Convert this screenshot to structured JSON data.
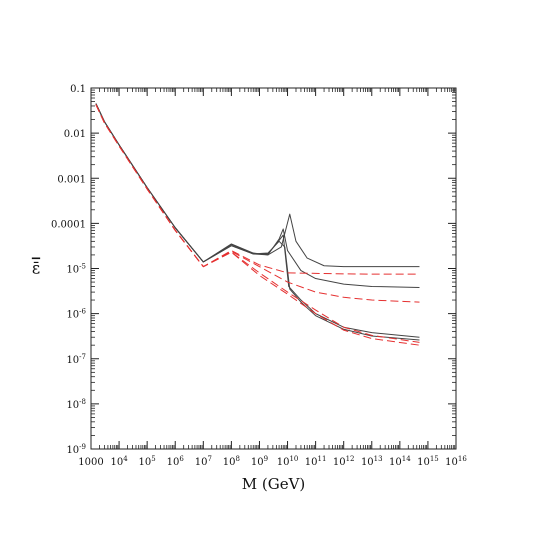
{
  "chart_data": {
    "type": "line",
    "title": "",
    "xlabel": "M (GeV)",
    "ylabel": "ε̄",
    "xscale": "log",
    "yscale": "log",
    "xlim": [
      1000,
      1e+16
    ],
    "ylim": [
      1e-09,
      0.1
    ],
    "grid": false,
    "x_ticks": [
      {
        "value": 1000.0,
        "base": "1000",
        "exp": ""
      },
      {
        "value": 10000.0,
        "base": "10",
        "exp": "4"
      },
      {
        "value": 100000.0,
        "base": "10",
        "exp": "5"
      },
      {
        "value": 1000000.0,
        "base": "10",
        "exp": "6"
      },
      {
        "value": 10000000.0,
        "base": "10",
        "exp": "7"
      },
      {
        "value": 100000000.0,
        "base": "10",
        "exp": "8"
      },
      {
        "value": 1000000000.0,
        "base": "10",
        "exp": "9"
      },
      {
        "value": 10000000000.0,
        "base": "10",
        "exp": "10"
      },
      {
        "value": 100000000000.0,
        "base": "10",
        "exp": "11"
      },
      {
        "value": 1000000000000.0,
        "base": "10",
        "exp": "12"
      },
      {
        "value": 10000000000000.0,
        "base": "10",
        "exp": "13"
      },
      {
        "value": 100000000000000.0,
        "base": "10",
        "exp": "14"
      },
      {
        "value": 1000000000000000.0,
        "base": "10",
        "exp": "15"
      },
      {
        "value": 1e+16,
        "base": "10",
        "exp": "16"
      }
    ],
    "y_ticks": [
      {
        "value": 0.1,
        "base": "0.1",
        "exp": ""
      },
      {
        "value": 0.01,
        "base": "0.01",
        "exp": ""
      },
      {
        "value": 0.001,
        "base": "0.001",
        "exp": ""
      },
      {
        "value": 0.0001,
        "base": "0.0001",
        "exp": ""
      },
      {
        "value": 1e-05,
        "base": "10",
        "exp": "-5"
      },
      {
        "value": 1e-06,
        "base": "10",
        "exp": "-6"
      },
      {
        "value": 1e-07,
        "base": "10",
        "exp": "-7"
      },
      {
        "value": 1e-08,
        "base": "10",
        "exp": "-8"
      },
      {
        "value": 1e-09,
        "base": "10",
        "exp": "-9"
      }
    ],
    "series": [
      {
        "style": "solid",
        "color": "#444444",
        "points": [
          [
            1500.0,
            0.045
          ],
          [
            3000.0,
            0.018
          ],
          [
            10000.0,
            0.0055
          ],
          [
            100000.0,
            0.00062
          ],
          [
            1000000.0,
            8e-05
          ],
          [
            10000000.0,
            1.4e-05
          ],
          [
            100000000.0,
            3.5e-05
          ],
          [
            600000000.0,
            2.2e-05
          ],
          [
            2000000000.0,
            2e-05
          ],
          [
            6000000000.0,
            3e-05
          ],
          [
            12000000000.0,
            0.00016
          ],
          [
            20000000000.0,
            4e-05
          ],
          [
            50000000000.0,
            1.7e-05
          ],
          [
            200000000000.0,
            1.15e-05
          ],
          [
            1000000000000.0,
            1.1e-05
          ],
          [
            10000000000000.0,
            1.1e-05
          ],
          [
            500000000000000.0,
            1.1e-05
          ]
        ]
      },
      {
        "style": "solid",
        "color": "#444444",
        "points": [
          [
            1500.0,
            0.045
          ],
          [
            3000.0,
            0.018
          ],
          [
            10000.0,
            0.0055
          ],
          [
            100000.0,
            0.00062
          ],
          [
            1000000.0,
            8e-05
          ],
          [
            10000000.0,
            1.4e-05
          ],
          [
            100000000.0,
            3.4e-05
          ],
          [
            600000000.0,
            2.1e-05
          ],
          [
            2000000000.0,
            2e-05
          ],
          [
            5000000000.0,
            4.5e-05
          ],
          [
            7000000000.0,
            7.5e-05
          ],
          [
            10000000000.0,
            2.5e-05
          ],
          [
            30000000000.0,
            9e-06
          ],
          [
            100000000000.0,
            6e-06
          ],
          [
            1000000000000.0,
            4.5e-06
          ],
          [
            10000000000000.0,
            4e-06
          ],
          [
            500000000000000.0,
            3.8e-06
          ]
        ]
      },
      {
        "style": "solid",
        "color": "#444444",
        "points": [
          [
            1500.0,
            0.045
          ],
          [
            3000.0,
            0.018
          ],
          [
            10000.0,
            0.0055
          ],
          [
            100000.0,
            0.00062
          ],
          [
            1000000.0,
            8e-05
          ],
          [
            10000000.0,
            1.4e-05
          ],
          [
            100000000.0,
            3.2e-05
          ],
          [
            600000000.0,
            2.1e-05
          ],
          [
            2000000000.0,
            2.1e-05
          ],
          [
            4000000000.0,
            3.5e-05
          ],
          [
            7000000000.0,
            5.5e-05
          ],
          [
            11000000000.0,
            4e-06
          ],
          [
            30000000000.0,
            2e-06
          ],
          [
            100000000000.0,
            1e-06
          ],
          [
            1000000000000.0,
            5e-07
          ],
          [
            10000000000000.0,
            3.8e-07
          ],
          [
            500000000000000.0,
            3e-07
          ]
        ]
      },
      {
        "style": "solid",
        "color": "#444444",
        "points": [
          [
            1500.0,
            0.045
          ],
          [
            3000.0,
            0.018
          ],
          [
            10000.0,
            0.0055
          ],
          [
            100000.0,
            0.00062
          ],
          [
            1000000.0,
            8e-05
          ],
          [
            10000000.0,
            1.4e-05
          ],
          [
            100000000.0,
            3.2e-05
          ],
          [
            600000000.0,
            2.1e-05
          ],
          [
            2000000000.0,
            2.2e-05
          ],
          [
            5000000000.0,
            4e-05
          ],
          [
            8000000000.0,
            3e-05
          ],
          [
            12000000000.0,
            3.5e-06
          ],
          [
            30000000000.0,
            1.8e-06
          ],
          [
            100000000000.0,
            9e-07
          ],
          [
            1000000000000.0,
            4.5e-07
          ],
          [
            10000000000000.0,
            3.2e-07
          ],
          [
            500000000000000.0,
            2.6e-07
          ]
        ]
      },
      {
        "style": "dashed",
        "color": "#e53030",
        "points": [
          [
            1500.0,
            0.043
          ],
          [
            3000.0,
            0.017
          ],
          [
            10000.0,
            0.0052
          ],
          [
            100000.0,
            0.00058
          ],
          [
            1000000.0,
            7e-05
          ],
          [
            10000000.0,
            1.1e-05
          ],
          [
            100000000.0,
            2.5e-05
          ],
          [
            1000000000.0,
            1.2e-05
          ],
          [
            10000000000.0,
            8e-06
          ],
          [
            100000000000.0,
            7.8e-06
          ],
          [
            1000000000000.0,
            7.6e-06
          ],
          [
            10000000000000.0,
            7.5e-06
          ],
          [
            500000000000000.0,
            7.5e-06
          ]
        ]
      },
      {
        "style": "dashed",
        "color": "#e53030",
        "points": [
          [
            1500.0,
            0.043
          ],
          [
            3000.0,
            0.017
          ],
          [
            10000.0,
            0.0052
          ],
          [
            100000.0,
            0.00058
          ],
          [
            1000000.0,
            7e-05
          ],
          [
            10000000.0,
            1.1e-05
          ],
          [
            100000000.0,
            2.4e-05
          ],
          [
            1000000000.0,
            1.1e-05
          ],
          [
            10000000000.0,
            5e-06
          ],
          [
            100000000000.0,
            3e-06
          ],
          [
            1000000000000.0,
            2.3e-06
          ],
          [
            10000000000000.0,
            2e-06
          ],
          [
            500000000000000.0,
            1.8e-06
          ]
        ]
      },
      {
        "style": "dashed",
        "color": "#e53030",
        "points": [
          [
            1500.0,
            0.043
          ],
          [
            3000.0,
            0.017
          ],
          [
            10000.0,
            0.0052
          ],
          [
            100000.0,
            0.00058
          ],
          [
            1000000.0,
            7e-05
          ],
          [
            10000000.0,
            1.1e-05
          ],
          [
            100000000.0,
            2.3e-05
          ],
          [
            1000000000.0,
            8e-06
          ],
          [
            10000000000.0,
            3e-06
          ],
          [
            100000000000.0,
            1.2e-06
          ],
          [
            1000000000000.0,
            5e-07
          ],
          [
            10000000000000.0,
            3.3e-07
          ],
          [
            500000000000000.0,
            2.3e-07
          ]
        ]
      },
      {
        "style": "dashed",
        "color": "#e53030",
        "points": [
          [
            1500.0,
            0.043
          ],
          [
            3000.0,
            0.017
          ],
          [
            10000.0,
            0.0052
          ],
          [
            100000.0,
            0.00058
          ],
          [
            1000000.0,
            7e-05
          ],
          [
            10000000.0,
            1.1e-05
          ],
          [
            100000000.0,
            2.3e-05
          ],
          [
            1000000000.0,
            7e-06
          ],
          [
            10000000000.0,
            2.7e-06
          ],
          [
            100000000000.0,
            1e-06
          ],
          [
            1000000000000.0,
            4.3e-07
          ],
          [
            10000000000000.0,
            2.8e-07
          ],
          [
            500000000000000.0,
            2e-07
          ]
        ]
      }
    ]
  }
}
